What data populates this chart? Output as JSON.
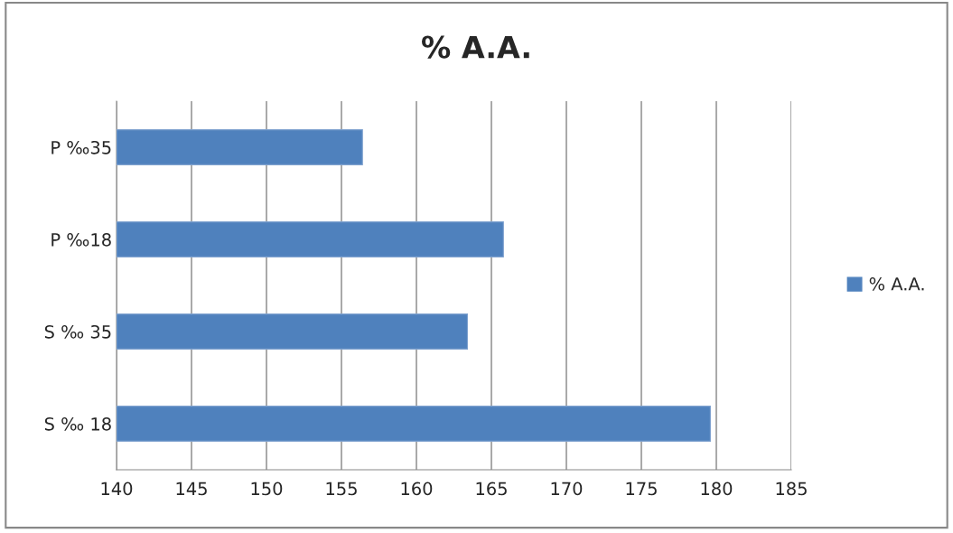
{
  "chart_data": {
    "type": "bar",
    "orientation": "horizontal",
    "title": "% A.A.",
    "categories": [
      "P ‰35",
      "P ‰18",
      "S ‰ 35",
      "S ‰ 18"
    ],
    "series": [
      {
        "name": "% A.A.",
        "color": "#4f81bd",
        "values": [
          156.4,
          165.8,
          163.4,
          179.6
        ]
      }
    ],
    "xlim": [
      140,
      185
    ],
    "xticks": [
      140,
      145,
      150,
      155,
      160,
      165,
      170,
      175,
      180,
      185
    ],
    "grid": "x",
    "legend": "right"
  }
}
